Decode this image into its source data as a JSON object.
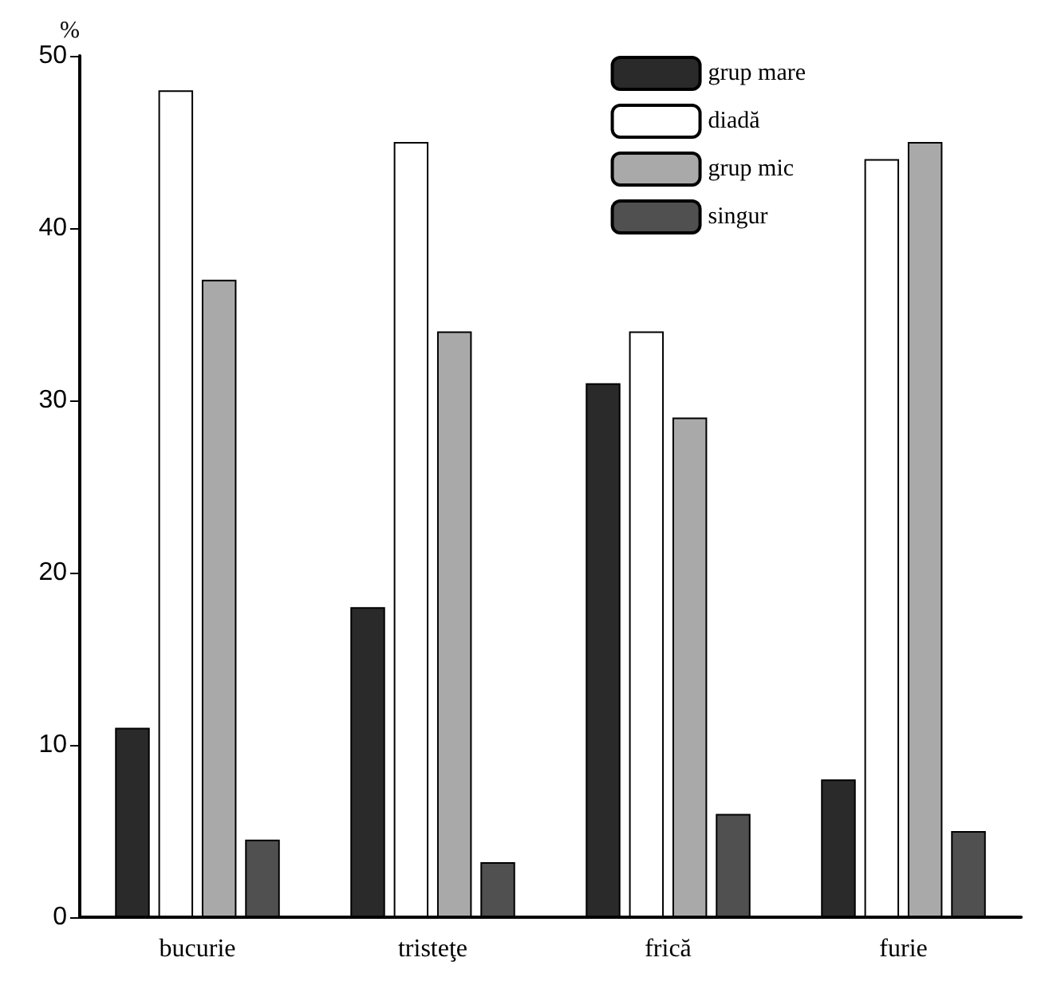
{
  "chart_data": {
    "type": "bar",
    "ylabel": "%",
    "categories": [
      "bucurie",
      "tristeţe",
      "frică",
      "furie"
    ],
    "series": [
      {
        "name": "grup mare",
        "color": "#2a2a2a",
        "values": [
          11,
          18,
          31,
          8
        ]
      },
      {
        "name": "diadă",
        "color": "#ffffff",
        "values": [
          48,
          45,
          34,
          44
        ]
      },
      {
        "name": "grup mic",
        "color": "#a9a9a9",
        "values": [
          37,
          34,
          29,
          45
        ]
      },
      {
        "name": "singur",
        "color": "#505050",
        "values": [
          4.5,
          3.2,
          6,
          5
        ]
      }
    ],
    "ylim": [
      0,
      50
    ],
    "yticks": [
      0,
      10,
      20,
      30,
      40,
      50
    ],
    "grid": false,
    "legend": "top right"
  }
}
